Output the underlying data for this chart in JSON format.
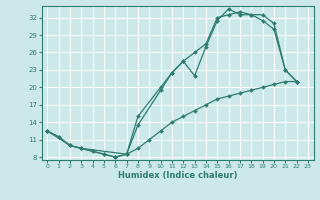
{
  "title": "",
  "xlabel": "Humidex (Indice chaleur)",
  "xlim": [
    -0.5,
    23.5
  ],
  "ylim": [
    7.5,
    34.0
  ],
  "yticks": [
    8,
    11,
    14,
    17,
    20,
    23,
    26,
    29,
    32
  ],
  "xticks": [
    0,
    1,
    2,
    3,
    4,
    5,
    6,
    7,
    8,
    9,
    10,
    11,
    12,
    13,
    14,
    15,
    16,
    17,
    18,
    19,
    20,
    21,
    22,
    23
  ],
  "bg_color": "#cce8e8",
  "grid_color": "#ffffff",
  "line_color": "#2e7d6e",
  "line1_x": [
    0,
    1,
    2,
    3,
    4,
    5,
    6,
    7,
    8,
    10,
    11,
    12,
    13,
    14,
    15,
    16,
    17,
    18,
    19,
    20,
    21,
    22
  ],
  "line1_y": [
    12.5,
    11.5,
    10.0,
    9.5,
    9.0,
    8.5,
    8.0,
    8.5,
    13.5,
    19.5,
    22.5,
    24.5,
    22.0,
    27.0,
    31.5,
    33.5,
    32.5,
    32.5,
    32.5,
    31.0,
    23.0,
    21.0
  ],
  "line2_x": [
    0,
    2,
    3,
    7,
    8,
    10,
    11,
    12,
    13,
    14,
    15,
    16,
    17,
    18,
    19,
    20,
    21,
    22
  ],
  "line2_y": [
    12.5,
    10.0,
    9.5,
    8.5,
    15.0,
    20.0,
    22.5,
    24.5,
    26.0,
    27.5,
    32.0,
    32.5,
    33.0,
    32.5,
    31.5,
    30.0,
    23.0,
    21.0
  ],
  "line3_x": [
    0,
    1,
    2,
    3,
    4,
    5,
    6,
    7,
    8,
    9,
    10,
    11,
    12,
    13,
    14,
    15,
    16,
    17,
    18,
    19,
    20,
    21,
    22
  ],
  "line3_y": [
    12.5,
    11.5,
    10.0,
    9.5,
    9.0,
    8.5,
    8.0,
    8.5,
    9.5,
    11.0,
    12.5,
    14.0,
    15.0,
    16.0,
    17.0,
    18.0,
    18.5,
    19.0,
    19.5,
    20.0,
    20.5,
    21.0,
    21.0
  ]
}
